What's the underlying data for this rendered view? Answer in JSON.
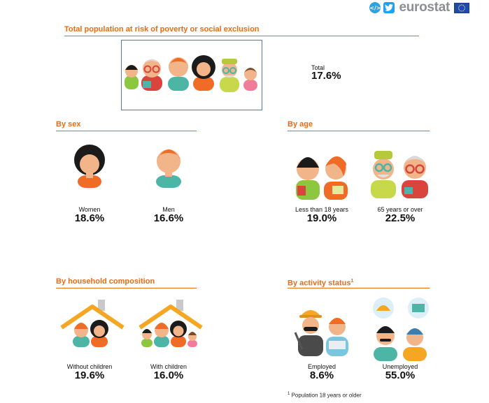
{
  "header": {
    "embed_icon": "embed-code-icon",
    "twitter_icon": "twitter-icon",
    "brand": "eurostat",
    "flag_icon": "eu-flag-icon"
  },
  "colors": {
    "accent": "#e96b14",
    "skin": "#f2b58a",
    "hair_dark": "#1b1b1b",
    "hair_orange": "#f06b25",
    "hair_grey": "#d9d9d9",
    "shirt_teal": "#4cb5a6",
    "shirt_red": "#d9453c",
    "shirt_green": "#8dc63f",
    "roof": "#f5a623"
  },
  "total": {
    "title": "Total population at risk of poverty or social exclusion",
    "label": "Total",
    "value": "17.6%"
  },
  "by_sex": {
    "title": "By sex",
    "items": [
      {
        "label": "Women",
        "value": "18.6%"
      },
      {
        "label": "Men",
        "value": "16.6%"
      }
    ]
  },
  "by_age": {
    "title": "By age",
    "items": [
      {
        "label": "Less than 18 years",
        "value": "19.0%"
      },
      {
        "label": "65 years or over",
        "value": "22.5%"
      }
    ]
  },
  "by_household": {
    "title": "By household composition",
    "items": [
      {
        "label": "Without children",
        "value": "19.6%"
      },
      {
        "label": "With children",
        "value": "16.0%"
      }
    ]
  },
  "by_activity": {
    "title": "By activity status",
    "footnote_mark": "1",
    "items": [
      {
        "label": "Employed",
        "value": "8.6%"
      },
      {
        "label": "Unemployed",
        "value": "55.0%"
      }
    ]
  },
  "footnote": {
    "mark": "1",
    "text": "Population 18 years or older"
  }
}
